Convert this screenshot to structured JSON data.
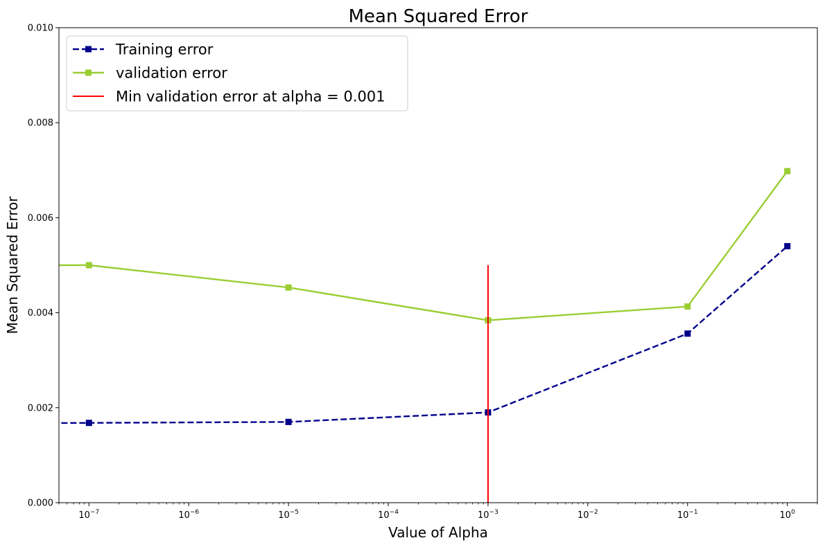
{
  "chart_data": {
    "type": "line",
    "title": "Mean Squared Error",
    "xlabel": "Value of Alpha",
    "ylabel": "Mean Squared Error",
    "xscale": "log",
    "xlim": [
      5e-08,
      2
    ],
    "ylim": [
      0,
      0.01
    ],
    "grid": false,
    "legend_position": "top-left",
    "x_tick_values": [
      1e-07,
      1e-06,
      1e-05,
      0.0001,
      0.001,
      0.01,
      0.1,
      1
    ],
    "x_tick_labels": [
      {
        "base": "10",
        "exp": "−7"
      },
      {
        "base": "10",
        "exp": "−6"
      },
      {
        "base": "10",
        "exp": "−5"
      },
      {
        "base": "10",
        "exp": "−4"
      },
      {
        "base": "10",
        "exp": "−3"
      },
      {
        "base": "10",
        "exp": "−2"
      },
      {
        "base": "10",
        "exp": "−1"
      },
      {
        "base": "10",
        "exp": "0"
      }
    ],
    "y_ticks": [
      0,
      0.002,
      0.004,
      0.006,
      0.008,
      0.01
    ],
    "y_tick_labels": [
      "0.000",
      "0.002",
      "0.004",
      "0.006",
      "0.008",
      "0.010"
    ],
    "series": [
      {
        "name": "Training error",
        "color": "#00008b",
        "style": "dashed",
        "marker": "square",
        "x": [
          1e-08,
          1e-07,
          1e-05,
          0.001,
          0.1,
          1
        ],
        "y": [
          0.00167,
          0.00168,
          0.0017,
          0.0019,
          0.00356,
          0.0054
        ]
      },
      {
        "name": "validation error",
        "color": "#9acd32",
        "style": "solid",
        "marker": "square",
        "x": [
          1e-08,
          1e-07,
          1e-05,
          0.001,
          0.1,
          1
        ],
        "y": [
          0.005,
          0.005,
          0.00453,
          0.00384,
          0.00413,
          0.00698
        ]
      }
    ],
    "annotations": [
      {
        "type": "vline",
        "name": "Min validation error at alpha = 0.001",
        "color": "#ff0000",
        "x": 0.001,
        "ymin": 0,
        "ymax": 0.005
      }
    ]
  }
}
